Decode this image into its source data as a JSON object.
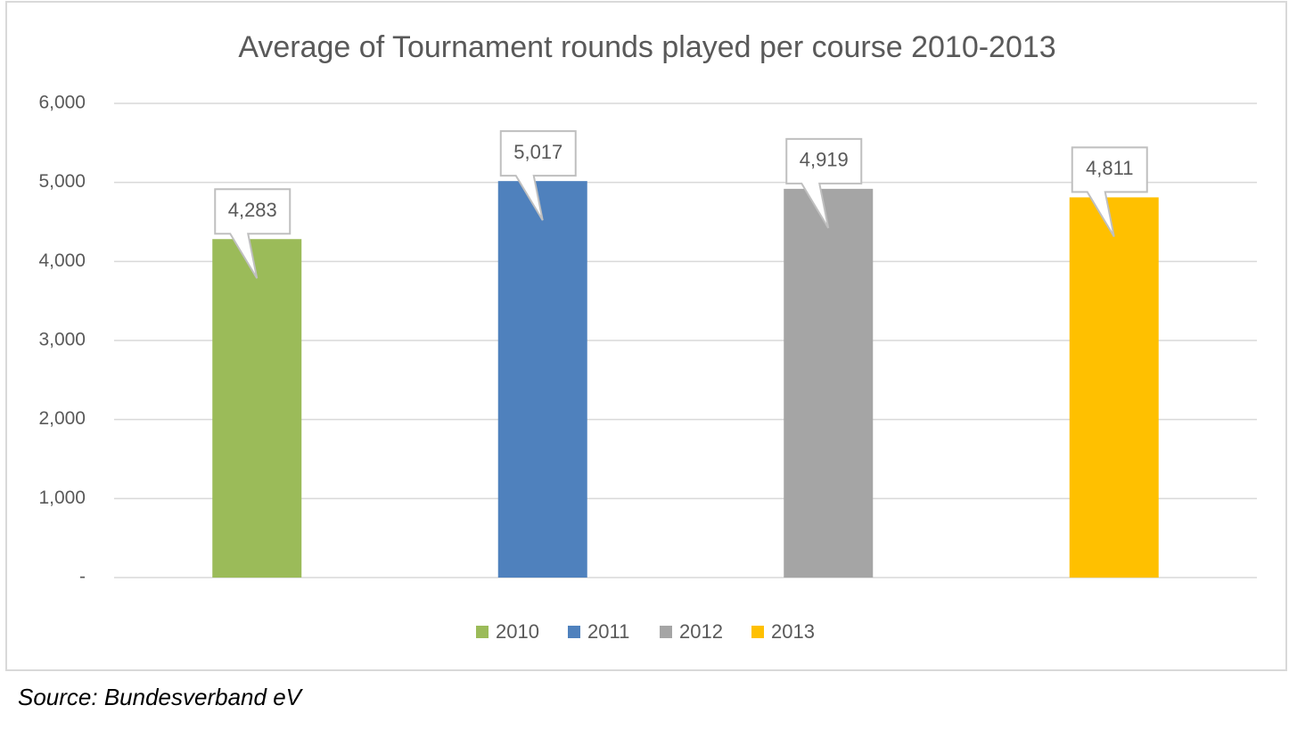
{
  "chart_data": {
    "type": "bar",
    "title": "Average of Tournament rounds played per course 2010-2013",
    "categories": [
      null
    ],
    "series": [
      {
        "name": "2010",
        "color": "#9bbb59",
        "values": [
          4283
        ],
        "value_labels": [
          "4,283"
        ]
      },
      {
        "name": "2011",
        "color": "#4f81bd",
        "values": [
          5017
        ],
        "value_labels": [
          "5,017"
        ]
      },
      {
        "name": "2012",
        "color": "#a5a5a5",
        "values": [
          4919
        ],
        "value_labels": [
          "4,919"
        ]
      },
      {
        "name": "2013",
        "color": "#ffc000",
        "values": [
          4811
        ],
        "value_labels": [
          "4,811"
        ]
      }
    ],
    "ylim": [
      0,
      6000
    ],
    "yticks": [
      {
        "value": 0,
        "label": "-"
      },
      {
        "value": 1000,
        "label": "1,000"
      },
      {
        "value": 2000,
        "label": "2,000"
      },
      {
        "value": 3000,
        "label": "3,000"
      },
      {
        "value": 4000,
        "label": "4,000"
      },
      {
        "value": 5000,
        "label": "5,000"
      },
      {
        "value": 6000,
        "label": "6,000"
      }
    ],
    "grid": true,
    "legend": "bottom",
    "source": "Source: Bundesverband eV"
  }
}
